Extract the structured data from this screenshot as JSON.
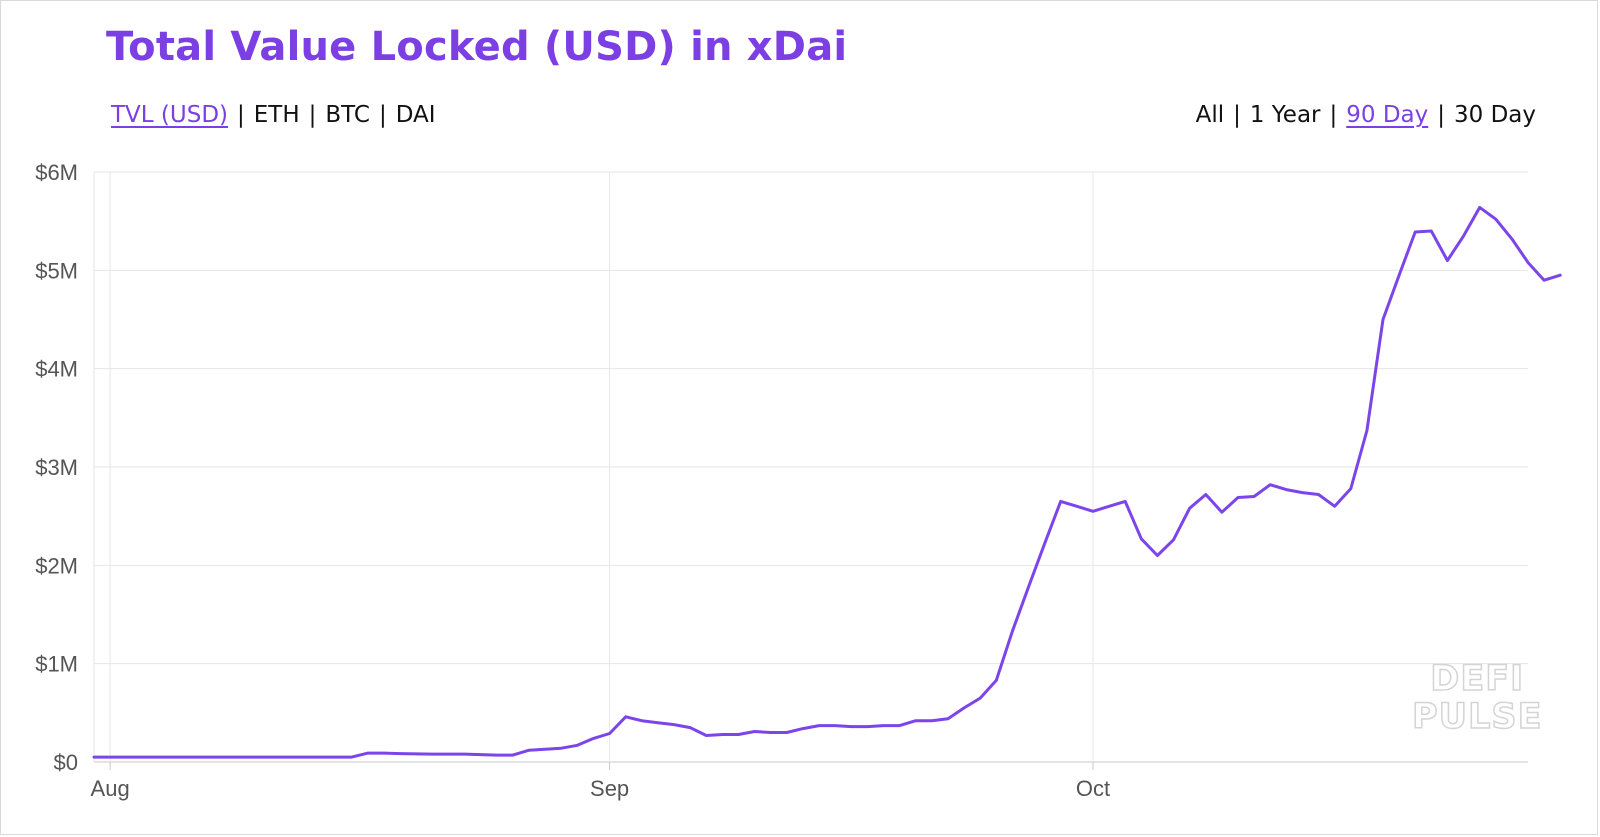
{
  "chart_data": {
    "type": "line",
    "title": "Total Value Locked (USD) in xDai",
    "currency_options": [
      "TVL (USD)",
      "ETH",
      "BTC",
      "DAI"
    ],
    "currency_selected": "TVL (USD)",
    "range_options": [
      "All",
      "1 Year",
      "90 Day",
      "30 Day"
    ],
    "range_selected": "90 Day",
    "y_ticks": [
      "$0",
      "$1M",
      "$2M",
      "$3M",
      "$4M",
      "$5M",
      "$6M"
    ],
    "ylim": [
      0,
      6
    ],
    "y_unit": "USD millions",
    "x_ticks": [
      {
        "label": "Aug",
        "date": "2020-08-01"
      },
      {
        "label": "Sep",
        "date": "2020-09-01"
      },
      {
        "label": "Oct",
        "date": "2020-10-01"
      }
    ],
    "xlim": [
      "2020-07-31",
      "2020-10-28"
    ],
    "grid": true,
    "line_color": "#7b45ea",
    "watermark": [
      "DEFI",
      "PULSE"
    ],
    "series": [
      {
        "points": [
          [
            "2020-07-31",
            0.05
          ],
          [
            "2020-08-02",
            0.05
          ],
          [
            "2020-08-04",
            0.05
          ],
          [
            "2020-08-06",
            0.05
          ],
          [
            "2020-08-08",
            0.05
          ],
          [
            "2020-08-10",
            0.05
          ],
          [
            "2020-08-12",
            0.05
          ],
          [
            "2020-08-14",
            0.05
          ],
          [
            "2020-08-16",
            0.05
          ],
          [
            "2020-08-17",
            0.09
          ],
          [
            "2020-08-18",
            0.09
          ],
          [
            "2020-08-19",
            0.085
          ],
          [
            "2020-08-21",
            0.08
          ],
          [
            "2020-08-23",
            0.08
          ],
          [
            "2020-08-25",
            0.07
          ],
          [
            "2020-08-26",
            0.07
          ],
          [
            "2020-08-27",
            0.12
          ],
          [
            "2020-08-28",
            0.13
          ],
          [
            "2020-08-29",
            0.14
          ],
          [
            "2020-08-30",
            0.17
          ],
          [
            "2020-08-31",
            0.24
          ],
          [
            "2020-09-01",
            0.29
          ],
          [
            "2020-09-02",
            0.46
          ],
          [
            "2020-09-03",
            0.42
          ],
          [
            "2020-09-04",
            0.4
          ],
          [
            "2020-09-05",
            0.38
          ],
          [
            "2020-09-06",
            0.35
          ],
          [
            "2020-09-07",
            0.27
          ],
          [
            "2020-09-08",
            0.28
          ],
          [
            "2020-09-09",
            0.28
          ],
          [
            "2020-09-10",
            0.31
          ],
          [
            "2020-09-11",
            0.3
          ],
          [
            "2020-09-12",
            0.3
          ],
          [
            "2020-09-13",
            0.34
          ],
          [
            "2020-09-14",
            0.37
          ],
          [
            "2020-09-15",
            0.37
          ],
          [
            "2020-09-16",
            0.36
          ],
          [
            "2020-09-17",
            0.36
          ],
          [
            "2020-09-18",
            0.37
          ],
          [
            "2020-09-19",
            0.37
          ],
          [
            "2020-09-20",
            0.42
          ],
          [
            "2020-09-21",
            0.42
          ],
          [
            "2020-09-22",
            0.44
          ],
          [
            "2020-09-23",
            0.55
          ],
          [
            "2020-09-24",
            0.65
          ],
          [
            "2020-09-25",
            0.83
          ],
          [
            "2020-09-26",
            1.33
          ],
          [
            "2020-09-27",
            1.78
          ],
          [
            "2020-09-28",
            2.22
          ],
          [
            "2020-09-29",
            2.65
          ],
          [
            "2020-09-30",
            2.6
          ],
          [
            "2020-10-01",
            2.55
          ],
          [
            "2020-10-02",
            2.6
          ],
          [
            "2020-10-03",
            2.65
          ],
          [
            "2020-10-04",
            2.27
          ],
          [
            "2020-10-05",
            2.1
          ],
          [
            "2020-10-06",
            2.26
          ],
          [
            "2020-10-07",
            2.58
          ],
          [
            "2020-10-08",
            2.72
          ],
          [
            "2020-10-09",
            2.54
          ],
          [
            "2020-10-10",
            2.69
          ],
          [
            "2020-10-11",
            2.7
          ],
          [
            "2020-10-12",
            2.82
          ],
          [
            "2020-10-13",
            2.77
          ],
          [
            "2020-10-14",
            2.74
          ],
          [
            "2020-10-15",
            2.72
          ],
          [
            "2020-10-16",
            2.6
          ],
          [
            "2020-10-17",
            2.78
          ],
          [
            "2020-10-18",
            3.37
          ],
          [
            "2020-10-19",
            4.5
          ],
          [
            "2020-10-20",
            4.95
          ],
          [
            "2020-10-21",
            5.39
          ],
          [
            "2020-10-22",
            5.4
          ],
          [
            "2020-10-23",
            5.1
          ],
          [
            "2020-10-24",
            5.35
          ],
          [
            "2020-10-25",
            5.64
          ],
          [
            "2020-10-26",
            5.52
          ],
          [
            "2020-10-27",
            5.32
          ],
          [
            "2020-10-28",
            5.08
          ],
          [
            "2020-10-29",
            4.9
          ],
          [
            "2020-10-30",
            4.95
          ]
        ]
      }
    ]
  }
}
